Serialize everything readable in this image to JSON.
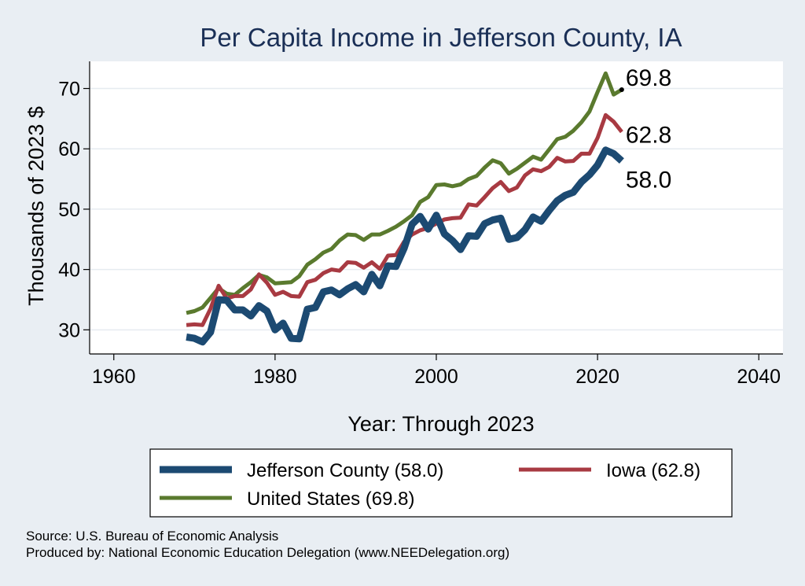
{
  "chart_data": {
    "type": "line",
    "title": "Per Capita Income in Jefferson County, IA",
    "xlabel": "Year: Through 2023",
    "ylabel": "Thousands of 2023 $",
    "xlim": [
      1957,
      2043
    ],
    "ylim": [
      26,
      74.5
    ],
    "x_ticks": [
      1960,
      1980,
      2000,
      2020,
      2040
    ],
    "y_ticks": [
      30,
      40,
      50,
      60,
      70
    ],
    "grid": true,
    "legend_position": "bottom",
    "series": [
      {
        "name": "United States",
        "legend_label": "United States (69.8)",
        "end_label": "69.8",
        "color": "#5a7a2e",
        "x": [
          1969,
          1970,
          1971,
          1972,
          1973,
          1974,
          1975,
          1976,
          1977,
          1978,
          1979,
          1980,
          1981,
          1982,
          1983,
          1984,
          1985,
          1986,
          1987,
          1988,
          1989,
          1990,
          1991,
          1992,
          1993,
          1994,
          1995,
          1996,
          1997,
          1998,
          1999,
          2000,
          2001,
          2002,
          2003,
          2004,
          2005,
          2006,
          2007,
          2008,
          2009,
          2010,
          2011,
          2012,
          2013,
          2014,
          2015,
          2016,
          2017,
          2018,
          2019,
          2020,
          2021,
          2022,
          2023
        ],
        "values": [
          32.8,
          33.1,
          33.7,
          35.3,
          36.9,
          36.0,
          35.8,
          36.9,
          37.9,
          39.1,
          38.7,
          37.7,
          37.8,
          37.9,
          38.9,
          40.8,
          41.7,
          42.8,
          43.4,
          44.8,
          45.8,
          45.7,
          44.9,
          45.8,
          45.8,
          46.4,
          47.1,
          48.0,
          49.0,
          51.2,
          52.0,
          54.0,
          54.1,
          53.8,
          54.1,
          55.0,
          55.5,
          56.9,
          58.1,
          57.6,
          55.9,
          56.7,
          57.7,
          58.7,
          58.2,
          59.9,
          61.6,
          62.0,
          63.0,
          64.4,
          66.2,
          69.4,
          72.5,
          69.0,
          69.8
        ]
      },
      {
        "name": "Iowa",
        "legend_label": "Iowa (62.8)",
        "end_label": "62.8",
        "color": "#a83a42",
        "x": [
          1969,
          1970,
          1971,
          1972,
          1973,
          1974,
          1975,
          1976,
          1977,
          1978,
          1979,
          1980,
          1981,
          1982,
          1983,
          1984,
          1985,
          1986,
          1987,
          1988,
          1989,
          1990,
          1991,
          1992,
          1993,
          1994,
          1995,
          1996,
          1997,
          1998,
          1999,
          2000,
          2001,
          2002,
          2003,
          2004,
          2005,
          2006,
          2007,
          2008,
          2009,
          2010,
          2011,
          2012,
          2013,
          2014,
          2015,
          2016,
          2017,
          2018,
          2019,
          2020,
          2021,
          2022,
          2023
        ],
        "values": [
          30.8,
          30.9,
          30.8,
          33.5,
          37.3,
          35.2,
          35.6,
          35.6,
          36.7,
          39.2,
          37.8,
          35.8,
          36.3,
          35.6,
          35.5,
          37.9,
          38.3,
          39.4,
          40.0,
          39.8,
          41.2,
          41.1,
          40.3,
          41.2,
          40.1,
          42.3,
          42.4,
          44.6,
          45.8,
          46.5,
          46.9,
          47.6,
          48.3,
          48.5,
          48.6,
          50.8,
          50.6,
          52.0,
          53.5,
          54.5,
          53.0,
          53.6,
          55.6,
          56.6,
          56.3,
          57.0,
          58.5,
          57.9,
          58.0,
          59.2,
          59.2,
          61.8,
          65.6,
          64.5,
          62.8
        ]
      },
      {
        "name": "Jefferson County",
        "legend_label": "Jefferson County (58.0)",
        "end_label": "58.0",
        "color": "#1c4a72",
        "x": [
          1969,
          1970,
          1971,
          1972,
          1973,
          1974,
          1975,
          1976,
          1977,
          1978,
          1979,
          1980,
          1981,
          1982,
          1983,
          1984,
          1985,
          1986,
          1987,
          1988,
          1989,
          1990,
          1991,
          1992,
          1993,
          1994,
          1995,
          1996,
          1997,
          1998,
          1999,
          2000,
          2001,
          2002,
          2003,
          2004,
          2005,
          2006,
          2007,
          2008,
          2009,
          2010,
          2011,
          2012,
          2013,
          2014,
          2015,
          2016,
          2017,
          2018,
          2019,
          2020,
          2021,
          2022,
          2023
        ],
        "values": [
          28.8,
          28.6,
          28.0,
          29.6,
          35.0,
          34.9,
          33.3,
          33.3,
          32.3,
          34.0,
          33.1,
          30.0,
          31.1,
          28.6,
          28.5,
          33.4,
          33.7,
          36.3,
          36.6,
          35.8,
          36.8,
          37.5,
          36.3,
          39.2,
          37.3,
          40.6,
          40.5,
          43.5,
          47.5,
          48.8,
          46.7,
          49.0,
          45.9,
          44.8,
          43.3,
          45.6,
          45.5,
          47.6,
          48.2,
          48.5,
          45.0,
          45.3,
          46.6,
          48.7,
          48.0,
          49.8,
          51.4,
          52.3,
          52.8,
          54.5,
          55.7,
          57.3,
          59.8,
          59.2,
          58.0
        ]
      }
    ]
  },
  "legend": {
    "items": [
      {
        "label": "Jefferson County (58.0)",
        "color": "#1c4a72"
      },
      {
        "label": "Iowa (62.8)",
        "color": "#a83a42"
      },
      {
        "label": "United States (69.8)",
        "color": "#5a7a2e"
      }
    ]
  },
  "footer": {
    "source": "Source: U.S. Bureau of Economic Analysis",
    "producer": "Produced by: National Economic Education Delegation (www.NEEDelegation.org)"
  }
}
